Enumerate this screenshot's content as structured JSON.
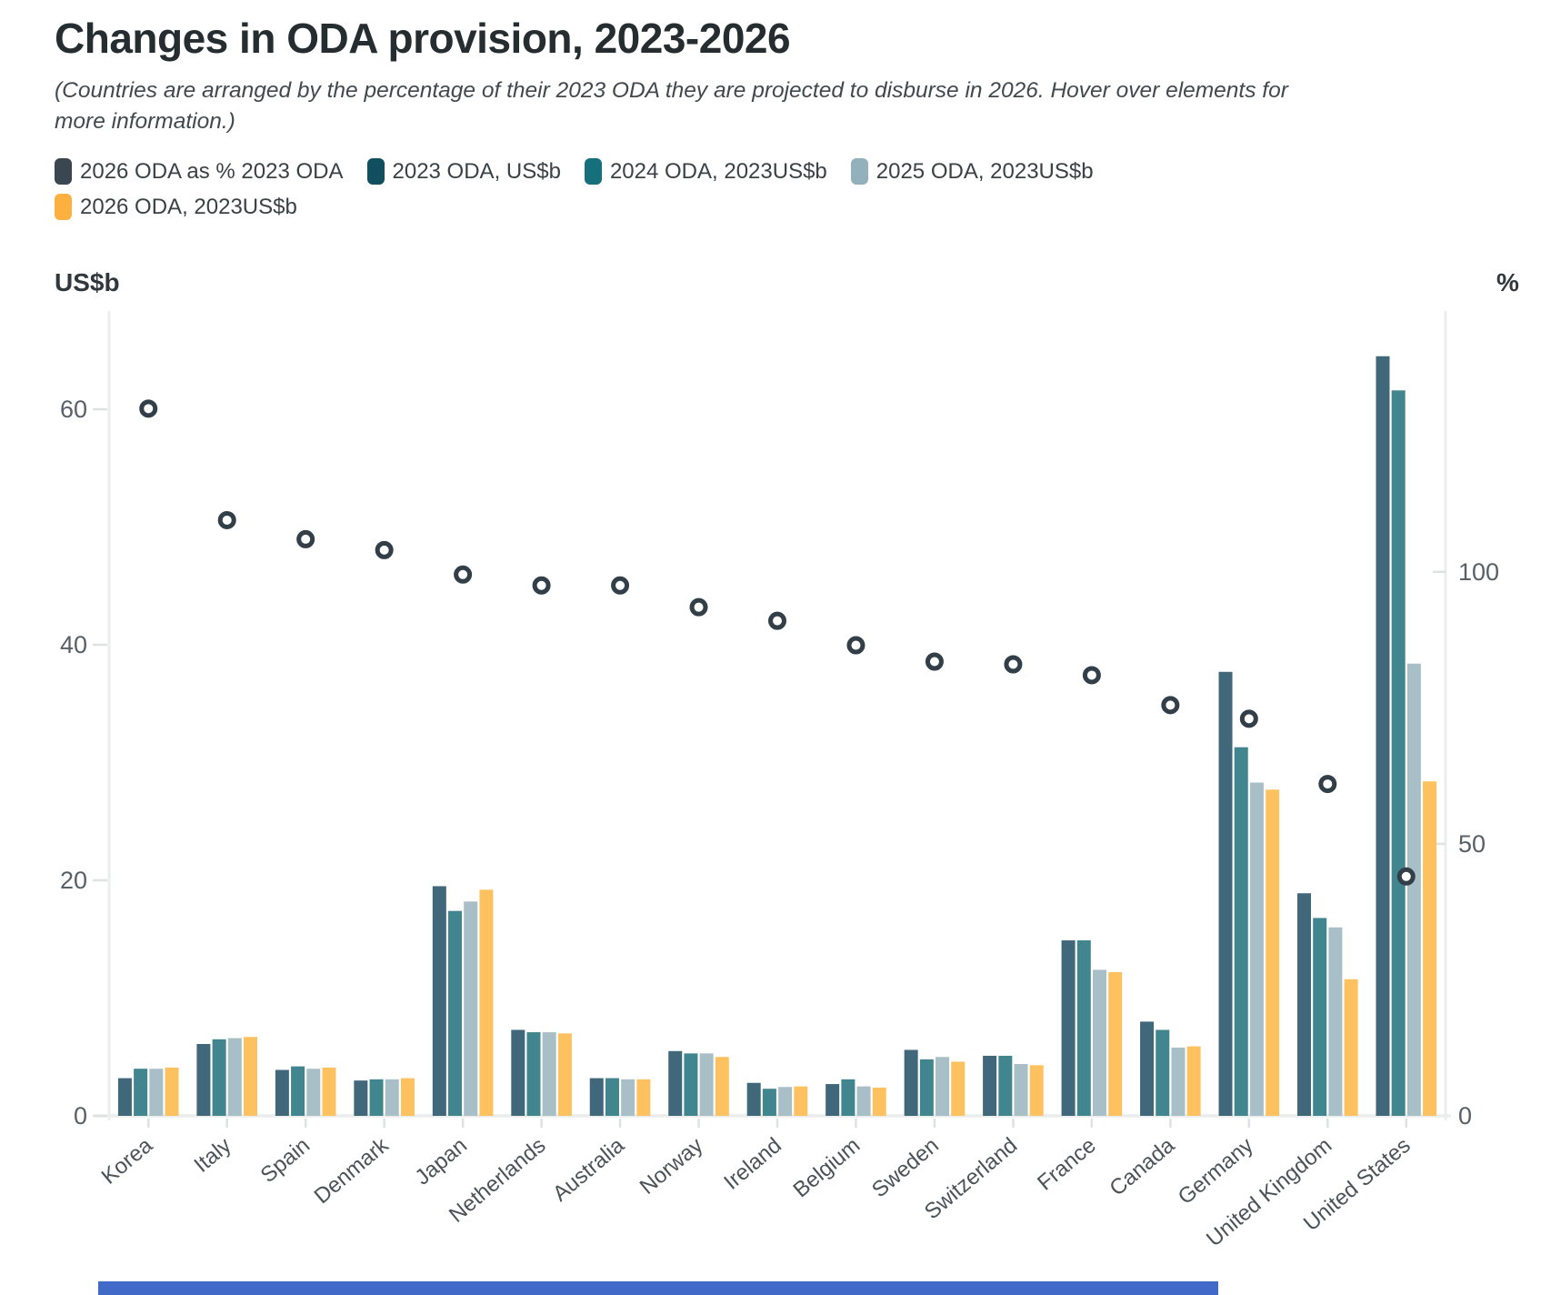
{
  "header": {
    "title": "Changes in ODA provision, 2023-2026",
    "subtitle": "(Countries are arranged by the percentage of their 2023 ODA they are projected to disburse in 2026. Hover over elements for more information.)"
  },
  "legend": {
    "items": [
      {
        "label": "2026 ODA as % 2023 ODA",
        "color": "#3a4750"
      },
      {
        "label": "2023 ODA, US$b",
        "color": "#114f60"
      },
      {
        "label": "2024 ODA, 2023US$b",
        "color": "#15707c"
      },
      {
        "label": "2025 ODA, 2023US$b",
        "color": "#93b1ba"
      },
      {
        "label": "2026 ODA, 2023US$b",
        "color": "#fcb03f"
      }
    ]
  },
  "chart_data": {
    "type": "bar",
    "subtype": "grouped bars with scatter overlay on right percent axis",
    "categories": [
      "Korea",
      "Italy",
      "Spain",
      "Denmark",
      "Japan",
      "Netherlands",
      "Australia",
      "Norway",
      "Ireland",
      "Belgium",
      "Sweden",
      "Switzerland",
      "France",
      "Canada",
      "Germany",
      "United Kingdom",
      "United States"
    ],
    "series": [
      {
        "name": "2023 ODA, US$b",
        "color": "#40687a",
        "values": [
          3.2,
          6.1,
          3.9,
          3.0,
          19.5,
          7.3,
          3.2,
          5.5,
          2.8,
          2.7,
          5.6,
          5.1,
          14.9,
          8.0,
          37.7,
          18.9,
          64.5
        ]
      },
      {
        "name": "2024 ODA, 2023US$b",
        "color": "#41858e",
        "values": [
          4.0,
          6.5,
          4.2,
          3.1,
          17.4,
          7.1,
          3.2,
          5.3,
          2.3,
          3.1,
          4.8,
          5.1,
          14.9,
          7.3,
          31.3,
          16.8,
          61.6
        ]
      },
      {
        "name": "2025 ODA, 2023US$b",
        "color": "#a9bfc7",
        "values": [
          4.0,
          6.6,
          4.0,
          3.1,
          18.2,
          7.1,
          3.1,
          5.3,
          2.45,
          2.5,
          5.0,
          4.4,
          12.4,
          5.8,
          28.3,
          16.0,
          38.4
        ]
      },
      {
        "name": "2026 ODA, 2023US$b",
        "color": "#fdc25f",
        "values": [
          4.1,
          6.7,
          4.1,
          3.2,
          19.2,
          7.0,
          3.1,
          5.0,
          2.5,
          2.4,
          4.6,
          4.3,
          12.2,
          5.9,
          27.7,
          11.6,
          28.4
        ]
      }
    ],
    "dot_series": {
      "name": "2026 ODA as % 2023 ODA",
      "axis": "right",
      "stroke_color": "#333f48",
      "fill_color": "#ffffff",
      "values": [
        130,
        109.5,
        106,
        104,
        99.5,
        97.5,
        97.5,
        93.5,
        91,
        86.5,
        83.5,
        83,
        81,
        75.5,
        73,
        61,
        44
      ]
    },
    "left_axis": {
      "label": "US$b",
      "ticks": [
        0,
        20,
        40,
        60
      ],
      "range": [
        0,
        67
      ]
    },
    "right_axis": {
      "label": "%",
      "ticks": [
        0,
        50,
        100
      ],
      "range": [
        0,
        134.6
      ]
    },
    "grid": "off",
    "legend_position": "top"
  }
}
